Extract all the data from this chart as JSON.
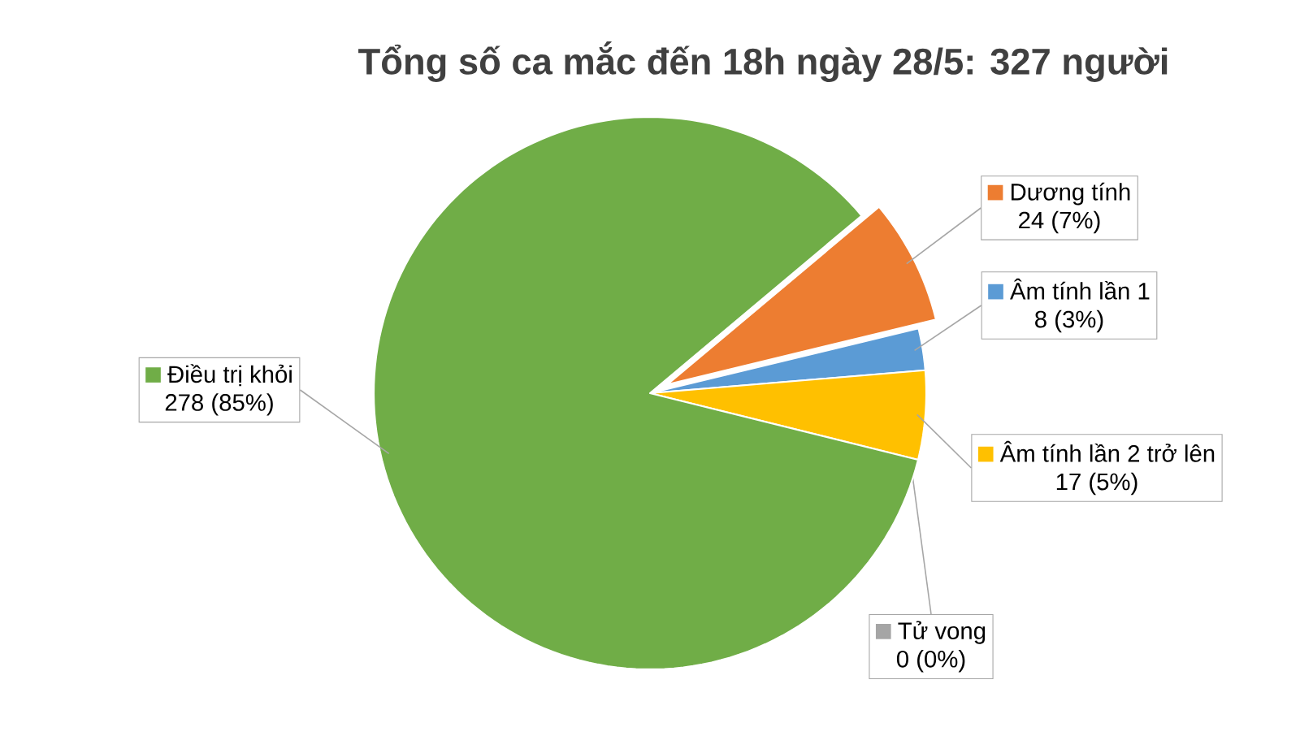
{
  "chart_data": {
    "type": "pie",
    "title": "Tổng số ca mắc đến 18h ngày 28/5: 327 người",
    "categories": [
      "Dương tính",
      "Âm tính lần 1",
      "Âm tính lần 2 trở lên",
      "Tử vong",
      "Điều trị khỏi"
    ],
    "values": [
      24,
      8,
      17,
      0,
      278
    ],
    "value_labels": [
      "24 (7%)",
      "8 (3%)",
      "17 (5%)",
      "0 (0%)",
      "278 (85%)"
    ],
    "legend": "right",
    "colors": [
      "#ed7d31",
      "#5b9bd5",
      "#ffc000",
      "#a5a5a5",
      "#70ad47"
    ]
  }
}
